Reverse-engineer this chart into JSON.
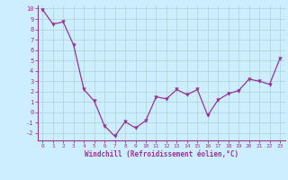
{
  "x": [
    0,
    1,
    2,
    3,
    4,
    5,
    6,
    7,
    8,
    9,
    10,
    11,
    12,
    13,
    14,
    15,
    16,
    17,
    18,
    19,
    20,
    21,
    22,
    23
  ],
  "y": [
    9.9,
    8.5,
    8.7,
    6.5,
    2.2,
    1.1,
    -1.3,
    -2.3,
    -0.9,
    -1.5,
    -0.8,
    1.5,
    1.3,
    2.2,
    1.7,
    2.2,
    -0.3,
    1.2,
    1.8,
    2.1,
    3.2,
    3.0,
    2.7,
    5.2
  ],
  "line_color": "#993399",
  "marker": "v",
  "marker_size": 2.5,
  "bg_color": "#cceeff",
  "grid_color": "#aadddd",
  "xlabel": "Windchill (Refroidissement éolien,°C)",
  "xlabel_color": "#993399",
  "tick_color": "#993399",
  "axis_color": "#993399",
  "ylim": [
    -2.7,
    10.3
  ],
  "xlim": [
    -0.5,
    23.5
  ],
  "yticks": [
    -2,
    -1,
    0,
    1,
    2,
    3,
    4,
    5,
    6,
    7,
    8,
    9,
    10
  ],
  "xticks": [
    0,
    1,
    2,
    3,
    4,
    5,
    6,
    7,
    8,
    9,
    10,
    11,
    12,
    13,
    14,
    15,
    16,
    17,
    18,
    19,
    20,
    21,
    22,
    23
  ]
}
